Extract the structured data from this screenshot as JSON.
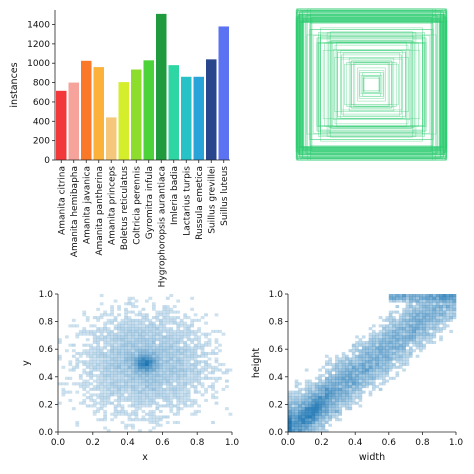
{
  "chart_data": [
    {
      "type": "bar",
      "title": "",
      "xlabel": "",
      "ylabel": "instances",
      "ylim": [
        0,
        1550
      ],
      "yticks": [
        0,
        200,
        400,
        600,
        800,
        1000,
        1200,
        1400
      ],
      "categories": [
        "Amanita citrina",
        "Amanita hemibapha",
        "Amanita javanica",
        "Amanita pantherina",
        "Amanita princeps",
        "Boletus reticulatus",
        "Coltricia perennis",
        "Gyromitra infula",
        "Hygrophoropsis aurantiaca",
        "Imleria badia",
        "Lactarius turpis",
        "Russula emetica",
        "Suillus grevillei",
        "Suillus luteus"
      ],
      "values": [
        715,
        800,
        1025,
        960,
        440,
        805,
        935,
        1030,
        1510,
        980,
        860,
        860,
        1040,
        1380
      ],
      "colors": [
        "#f23838",
        "#f6a49b",
        "#fa7827",
        "#fbb13a",
        "#f4c77b",
        "#d5ee2c",
        "#8ddd2c",
        "#4dd33a",
        "#1f9a3c",
        "#2ed6a3",
        "#27c2c7",
        "#2aa3d8",
        "#29458c",
        "#5b72f2"
      ]
    },
    {
      "type": "overlaid-boxes",
      "edge_color": "#2ecc71",
      "description_boxes": "many box outlines overlaid around a common center"
    },
    {
      "type": "heatmap",
      "xlabel": "x",
      "ylabel": "y",
      "xlim": [
        0.0,
        1.0
      ],
      "ylim": [
        0.0,
        1.0
      ],
      "xticks": [
        "0.0",
        "0.2",
        "0.4",
        "0.6",
        "0.8",
        "1.0"
      ],
      "yticks": [
        "0.0",
        "0.2",
        "0.4",
        "0.6",
        "0.8",
        "1.0"
      ],
      "color": "#1f77b4",
      "bins": 50,
      "density_peak": [
        0.5,
        0.5
      ]
    },
    {
      "type": "heatmap",
      "xlabel": "width",
      "ylabel": "height",
      "xlim": [
        0.0,
        1.0
      ],
      "ylim": [
        0.0,
        1.0
      ],
      "xticks": [
        "0.0",
        "0.2",
        "0.4",
        "0.6",
        "0.8",
        "1.0"
      ],
      "yticks": [
        "0.0",
        "0.2",
        "0.4",
        "0.6",
        "0.8",
        "1.0"
      ],
      "color": "#1f77b4",
      "bins": 50,
      "density_peak": [
        0.15,
        0.15
      ]
    }
  ]
}
